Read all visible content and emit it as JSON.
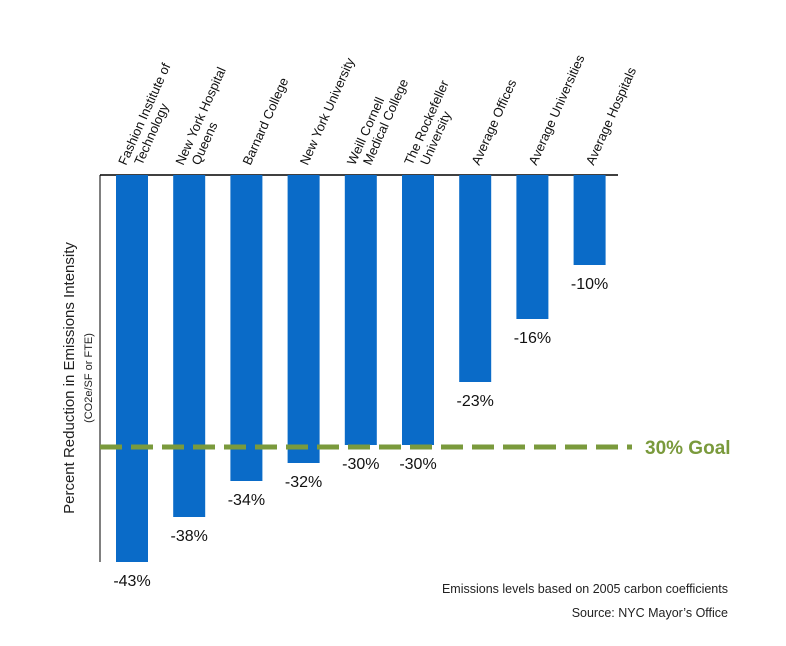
{
  "chart_data": {
    "type": "bar",
    "ylabel": "Percent Reduction in Emissions Intensity",
    "ylabel_sub": "(CO2e/SF or FTE)",
    "categories": [
      [
        "Fashion Institute of",
        "Technology"
      ],
      [
        "New York Hospital",
        "Queens"
      ],
      [
        "Barnard College"
      ],
      [
        "New York University"
      ],
      [
        "Weill Cornell",
        "Medical College"
      ],
      [
        "The Rockefeller",
        "University"
      ],
      [
        "Average Offices"
      ],
      [
        "Average Universities"
      ],
      [
        "Average  Hospitals"
      ]
    ],
    "values": [
      -43,
      -38,
      -34,
      -32,
      -30,
      -30,
      -23,
      -16,
      -10
    ],
    "data_labels": [
      "-43%",
      "-38%",
      "-34%",
      "-32%",
      "-30%",
      "-30%",
      "-23%",
      "-16%",
      "-10%"
    ],
    "ylim": [
      -43,
      0
    ],
    "goal": {
      "value": -30,
      "label": "30% Goal"
    },
    "bar_color": "#0a6bc8",
    "goal_color": "#7a9a3c",
    "grid": false,
    "legend": "none"
  },
  "notes": {
    "line1": "Emissions levels based on 2005 carbon coefficients",
    "line2": "Source: NYC Mayor’s Office"
  }
}
